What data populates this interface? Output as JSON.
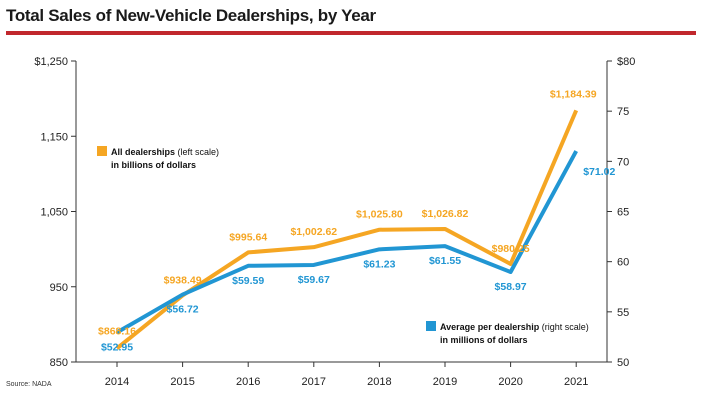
{
  "title": "Total Sales of New-Vehicle Dealerships, by Year",
  "source": "Source: NADA",
  "colors": {
    "rule": "#c1272d",
    "total": "#f5a623",
    "average": "#2196d3"
  },
  "chart_data": {
    "type": "line",
    "title": "Total Sales of New-Vehicle Dealerships, by Year",
    "x": [
      "2014",
      "2015",
      "2016",
      "2017",
      "2018",
      "2019",
      "2020",
      "2021"
    ],
    "left_axis": {
      "ylim": [
        850,
        1250
      ],
      "ticks": [
        "$1,250",
        "1,150",
        "1,050",
        "950",
        "850"
      ],
      "tick_values": [
        1250,
        1150,
        1050,
        950,
        850
      ]
    },
    "right_axis": {
      "ylim": [
        50,
        80
      ],
      "ticks": [
        "$80",
        "75",
        "70",
        "65",
        "60",
        "55",
        "50"
      ],
      "tick_values": [
        80,
        75,
        70,
        65,
        60,
        55,
        50
      ]
    },
    "series": [
      {
        "name": "All dealerships (left scale) in billions of dollars",
        "axis": "left",
        "values": [
          868.16,
          938.49,
          995.64,
          1002.62,
          1025.8,
          1026.82,
          980.25,
          1184.39
        ],
        "labels": [
          "$868.16",
          "$938.49",
          "$995.64",
          "$1,002.62",
          "$1,025.80",
          "$1,026.82",
          "$980.25",
          "$1,184.39"
        ]
      },
      {
        "name": "Average per dealership (right scale) in millions of dollars",
        "axis": "right",
        "values": [
          52.95,
          56.72,
          59.59,
          59.67,
          61.23,
          61.55,
          58.97,
          71.02
        ],
        "labels": [
          "$52.95",
          "$56.72",
          "$59.59",
          "$59.67",
          "$61.23",
          "$61.55",
          "$58.97",
          "$71.02"
        ]
      }
    ],
    "legend": [
      {
        "bold": "All dealerships",
        "normal": " (left scale)",
        "line2": "in billions of dollars"
      },
      {
        "bold": "Average per dealership",
        "normal": " (right scale)",
        "line2": "in millions of dollars"
      }
    ],
    "grid": false
  }
}
